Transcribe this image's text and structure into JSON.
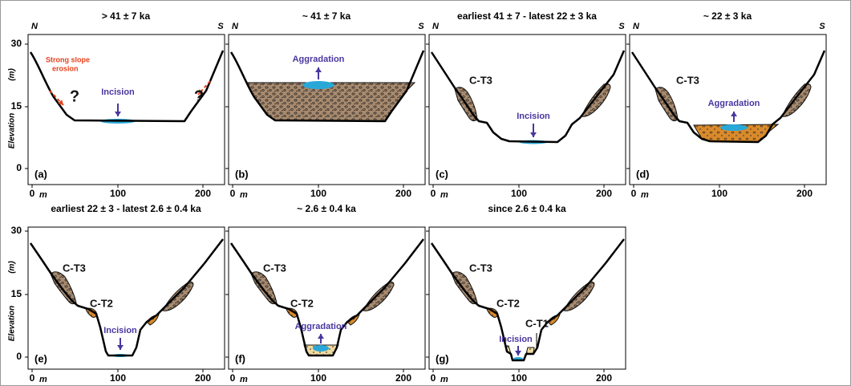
{
  "axis": {
    "north": "N",
    "south": "S",
    "y_label": "Elevation",
    "y_unit": "(m)",
    "y_ticks": [
      "30",
      "15",
      "0"
    ],
    "x_ticks": [
      "0",
      "100",
      "200"
    ],
    "x_unit": "m"
  },
  "panels": [
    {
      "title": "> 41 ± 7 ka",
      "label": "(a)",
      "annotations": [
        "Strong slope",
        "erosion",
        "?",
        "?",
        "Incision"
      ]
    },
    {
      "title": "~ 41 ± 7 ka",
      "label": "(b)",
      "annotations": [
        "Aggradation"
      ]
    },
    {
      "title": "earliest 41 ± 7 - latest 22 ± 3 ka",
      "label": "(c)",
      "annotations": [
        "C-T3",
        "Incision"
      ]
    },
    {
      "title": "~ 22 ± 3 ka",
      "label": "(d)",
      "annotations": [
        "C-T3",
        "Aggradation"
      ]
    },
    {
      "title": "earliest 22 ± 3 - latest 2.6 ± 0.4 ka",
      "label": "(e)",
      "annotations": [
        "C-T3",
        "C-T2",
        "Incision"
      ]
    },
    {
      "title": "~ 2.6 ± 0.4 ka",
      "label": "(f)",
      "annotations": [
        "C-T3",
        "C-T2",
        "Aggradation"
      ]
    },
    {
      "title": "since 2.6 ± 0.4 ka",
      "label": "(g)",
      "annotations": [
        "C-T3",
        "C-T2",
        "C-T1",
        "Incision"
      ]
    }
  ]
}
